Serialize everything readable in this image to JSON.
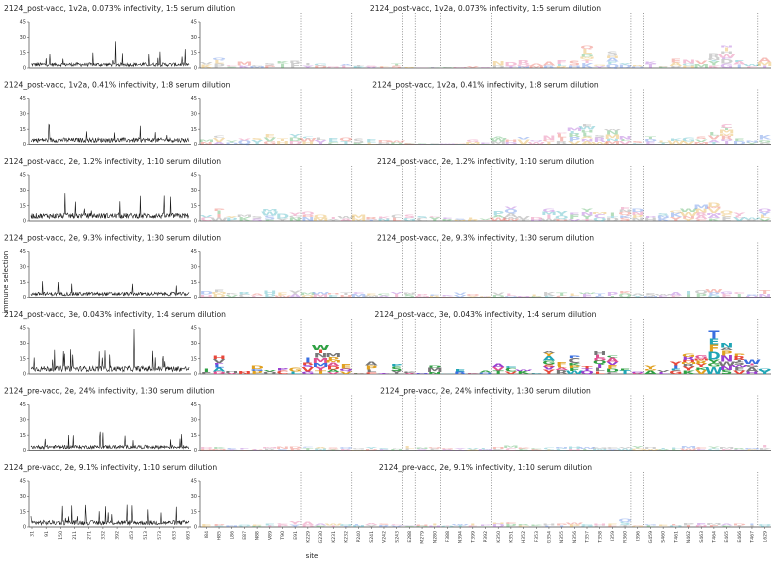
{
  "figure": {
    "ylabel": "immune selection",
    "xlabel": "site"
  },
  "chart_data": {
    "type": "line",
    "ylim": [
      0,
      45
    ],
    "yticks": [
      0,
      15,
      30,
      45
    ],
    "left_xticks": [
      "31",
      "91",
      "150",
      "211",
      "271",
      "332",
      "392",
      "453",
      "513",
      "573",
      "633",
      "693"
    ],
    "sites": [
      "I84",
      "H85",
      "L86",
      "E87",
      "N88",
      "V89",
      "T90",
      "E91",
      "K229",
      "G230",
      "K231",
      "K232",
      "P240",
      "S241",
      "V242",
      "S243",
      "E288",
      "M279",
      "N280",
      "F388",
      "N394",
      "T399",
      "P392",
      "K350",
      "K351",
      "H352",
      "F353",
      "G354",
      "N355",
      "N356",
      "T357",
      "T358",
      "I359",
      "R360",
      "I396",
      "G459",
      "S460",
      "T461",
      "N462",
      "S463",
      "T464",
      "E465",
      "E466",
      "T467",
      "L629"
    ],
    "site_groups": [
      [
        0,
        8
      ],
      [
        8,
        12
      ],
      [
        12,
        16
      ],
      [
        16,
        17
      ],
      [
        17,
        19
      ],
      [
        19,
        23
      ],
      [
        23,
        34
      ],
      [
        34,
        35
      ],
      [
        35,
        44
      ],
      [
        44,
        45
      ]
    ],
    "panels": [
      {
        "title": "2124_post-vacc, 1v2a, 0.073% infectivity, 1:5 serum dilution",
        "right_title": "2124_post-vacc, 1v2a, 0.073% infectivity, 1:5 serum dilution",
        "intensity": 0.35,
        "noise": 4,
        "values": [
          6,
          10,
          3,
          6,
          3,
          5,
          7,
          7,
          5,
          4,
          2,
          4,
          3,
          2,
          2,
          4,
          1,
          0.5,
          0.5,
          1,
          1,
          2,
          1,
          7,
          6,
          8,
          4,
          6,
          8,
          7,
          22,
          3,
          16,
          5,
          3,
          6,
          2,
          9,
          8,
          7,
          14,
          22,
          8,
          4,
          10
        ]
      },
      {
        "title": "2124_post-vacc, 1v2a, 0.41% infectivity, 1:8 serum dilution",
        "right_title": "2124_post-vacc, 1v2a, 0.41% infectivity, 1:8 serum dilution",
        "intensity": 0.3,
        "noise": 5,
        "values": [
          5,
          9,
          4,
          6,
          6,
          10,
          6,
          10,
          8,
          7,
          6,
          6,
          6,
          5,
          4,
          4,
          2,
          1,
          1,
          1,
          1,
          5,
          2,
          8,
          5,
          7,
          4,
          9,
          12,
          16,
          20,
          9,
          15,
          8,
          3,
          8,
          4,
          6,
          7,
          8,
          12,
          20,
          6,
          4,
          9
        ]
      },
      {
        "title": "2124_post-vacc, 2e, 1.2% infectivity, 1:10 serum dilution",
        "right_title": "2124_post-vacc, 2e, 1.2% infectivity, 1:10 serum dilution",
        "intensity": 0.3,
        "noise": 6,
        "values": [
          6,
          12,
          5,
          6,
          5,
          12,
          7,
          8,
          9,
          6,
          4,
          5,
          6,
          4,
          4,
          6,
          6,
          5,
          5,
          3,
          2,
          3,
          2,
          10,
          14,
          5,
          4,
          12,
          10,
          8,
          12,
          9,
          8,
          14,
          12,
          5,
          8,
          10,
          12,
          16,
          18,
          10,
          8,
          3,
          12
        ]
      },
      {
        "title": "2124_post-vacc, 2e, 9.3% infectivity, 1:30 serum dilution",
        "right_title": "2124_post-vacc, 2e, 9.3% infectivity, 1:30 serum dilution",
        "intensity": 0.25,
        "noise": 4,
        "values": [
          6,
          8,
          4,
          5,
          4,
          6,
          5,
          7,
          5,
          5,
          4,
          5,
          5,
          4,
          4,
          5,
          5,
          3,
          3,
          2,
          5,
          3,
          2,
          5,
          4,
          2,
          3,
          5,
          5,
          4,
          5,
          4,
          5,
          6,
          4,
          4,
          3,
          5,
          6,
          7,
          8,
          6,
          5,
          3,
          7
        ]
      },
      {
        "title": "2124_post-vacc, 3e, 0.043% infectivity, 1:4 serum dilution",
        "right_title": "2124_post-vacc, 3e, 0.043% infectivity, 1:4 serum dilution",
        "intensity": 1,
        "noise": 6,
        "values": [
          5,
          18,
          3,
          3,
          8,
          4,
          6,
          6,
          16,
          28,
          20,
          10,
          1,
          12,
          1,
          10,
          2,
          0.5,
          8,
          0.5,
          5,
          1,
          3,
          10,
          8,
          4,
          1,
          22,
          12,
          18,
          8,
          22,
          18,
          5,
          2,
          8,
          4,
          12,
          20,
          18,
          42,
          30,
          20,
          14,
          5
        ]
      },
      {
        "title": "2124_pre-vacc, 2e, 24% infectivity, 1:30 serum dilution",
        "right_title": "2124_pre-vacc, 2e, 24% infectivity, 1:30 serum dilution",
        "intensity": 0.25,
        "noise": 4,
        "values": [
          3,
          3,
          2,
          2,
          2,
          3,
          4,
          4,
          4,
          3,
          3,
          3,
          2,
          3,
          2,
          2,
          4,
          3,
          3,
          2,
          2,
          2,
          2,
          3,
          5,
          3,
          2,
          3,
          3,
          4,
          3,
          3,
          3,
          3,
          4,
          3,
          2,
          3,
          4,
          3,
          4,
          3,
          2,
          2,
          5
        ]
      },
      {
        "title": "2124_pre-vacc, 2e, 9.1% infectivity, 1:10 serum dilution",
        "right_title": "2124_pre-vacc, 2e, 9.1% infectivity, 1:10 serum dilution",
        "intensity": 0.25,
        "noise": 5,
        "values": [
          3,
          3,
          2,
          2,
          2,
          3,
          4,
          6,
          5,
          3,
          3,
          3,
          3,
          4,
          3,
          3,
          2,
          2,
          3,
          2,
          3,
          3,
          2,
          4,
          5,
          3,
          2,
          3,
          3,
          4,
          3,
          3,
          3,
          8,
          2,
          3,
          2,
          3,
          4,
          4,
          4,
          3,
          3,
          3,
          3
        ]
      }
    ]
  }
}
